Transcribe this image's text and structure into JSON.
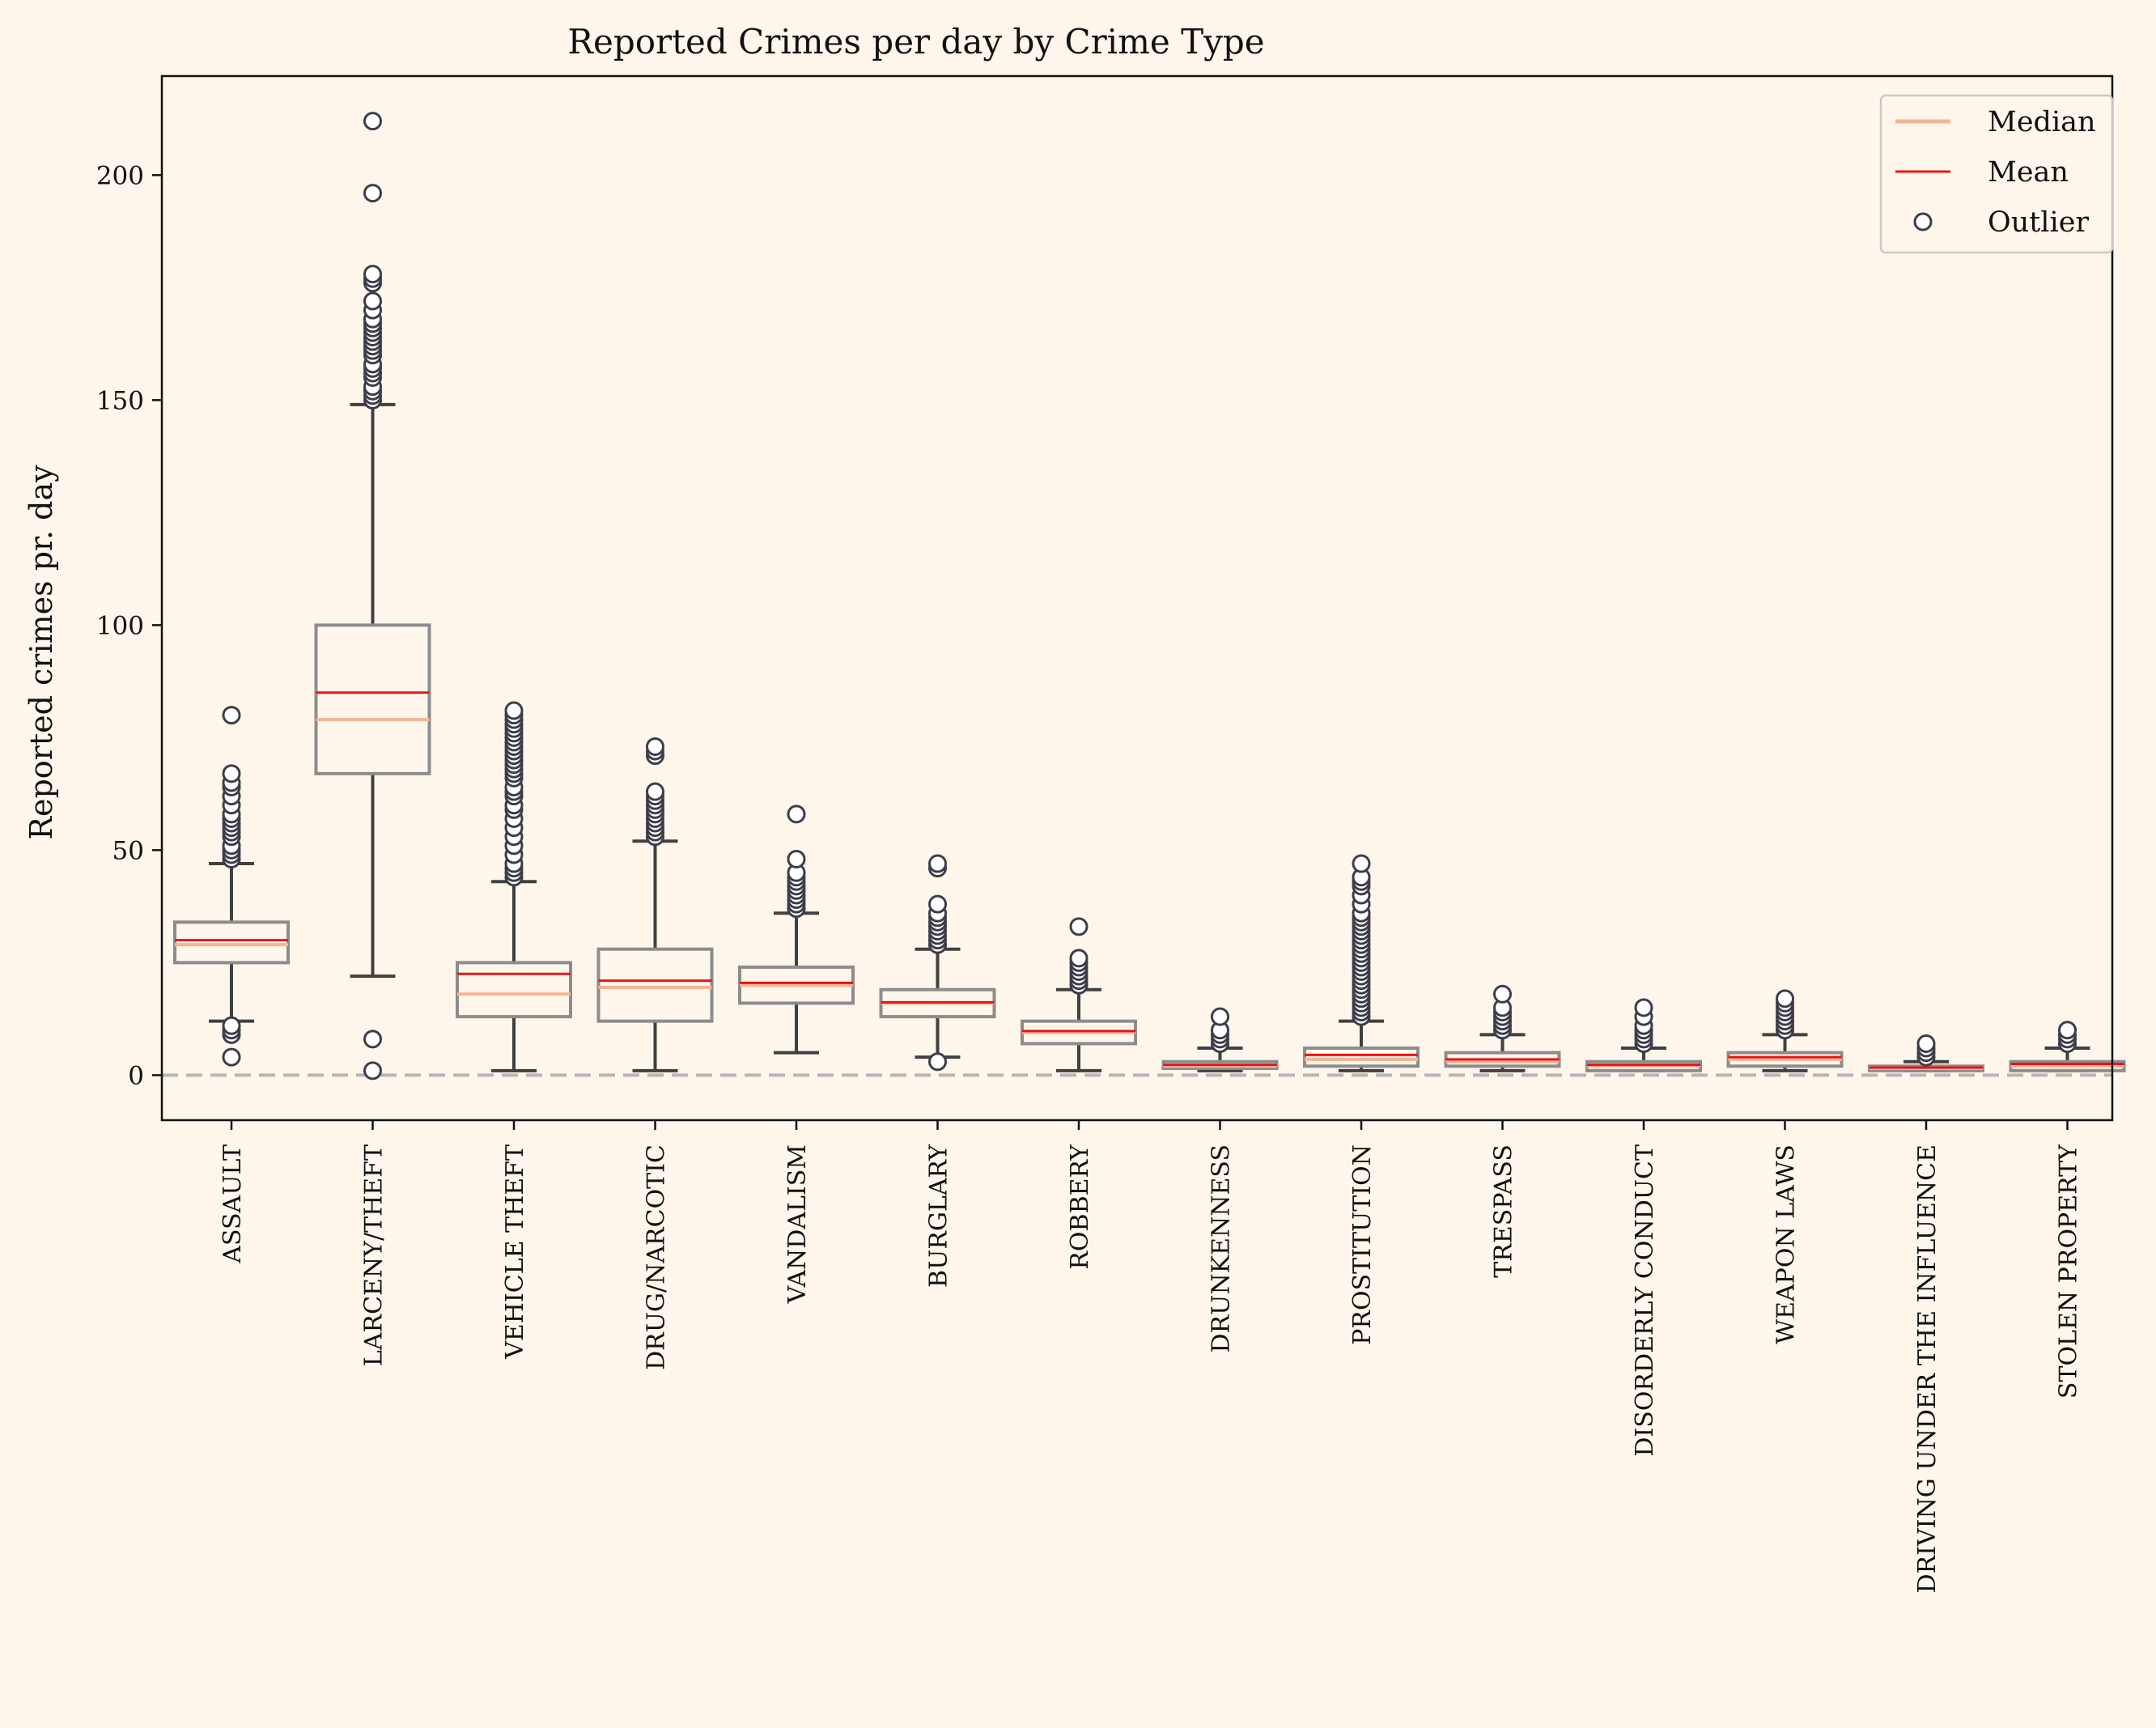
{
  "chart_data": {
    "type": "box",
    "title": "Reported Crimes per day by Crime Type",
    "xlabel": "",
    "ylabel": "Reported crimes pr. day",
    "ylim": [
      -10,
      222
    ],
    "yticks": [
      0,
      50,
      100,
      150,
      200
    ],
    "reference_line": 0,
    "legend": {
      "placement": "top-right",
      "entries": [
        {
          "key": "median",
          "label": "Median"
        },
        {
          "key": "mean",
          "label": "Mean"
        },
        {
          "key": "outlier",
          "label": "Outlier"
        }
      ]
    },
    "colors": {
      "median": "#f7b493",
      "mean": "#e8141a",
      "box_edge": "#8c8c8c",
      "whisker": "#404040",
      "reference": "#b5b5b5",
      "background": "#fff6eb"
    },
    "categories": [
      "ASSAULT",
      "LARCENY/THEFT",
      "VEHICLE THEFT",
      "DRUG/NARCOTIC",
      "VANDALISM",
      "BURGLARY",
      "ROBBERY",
      "DRUNKENNESS",
      "PROSTITUTION",
      "TRESPASS",
      "DISORDERLY CONDUCT",
      "WEAPON LAWS",
      "DRIVING UNDER THE INFLUENCE",
      "STOLEN PROPERTY"
    ],
    "boxes": [
      {
        "q1": 25,
        "median": 29,
        "q3": 34,
        "mean": 30,
        "whisker_low": 12,
        "whisker_high": 47,
        "outliers": [
          4,
          9,
          10,
          11,
          48,
          49,
          50,
          51,
          53,
          54,
          55,
          56,
          57,
          58,
          60,
          62,
          64,
          65,
          67,
          80
        ]
      },
      {
        "q1": 67,
        "median": 79,
        "q3": 100,
        "mean": 85,
        "whisker_low": 22,
        "whisker_high": 149,
        "outliers": [
          1,
          8,
          150,
          151,
          152,
          153,
          155,
          156,
          157,
          158,
          160,
          161,
          162,
          163,
          164,
          165,
          166,
          167,
          168,
          170,
          172,
          176,
          177,
          178,
          196,
          212
        ]
      },
      {
        "q1": 13,
        "median": 18,
        "q3": 25,
        "mean": 22.5,
        "whisker_low": 1,
        "whisker_high": 43,
        "outliers": [
          44,
          45,
          46,
          47,
          49,
          51,
          53,
          55,
          57,
          59,
          60,
          62,
          63,
          64,
          66,
          67,
          68,
          69,
          70,
          71,
          72,
          73,
          74,
          75,
          76,
          77,
          78,
          79,
          80,
          81
        ]
      },
      {
        "q1": 12,
        "median": 19.5,
        "q3": 28,
        "mean": 21,
        "whisker_low": 1,
        "whisker_high": 52,
        "outliers": [
          53,
          54,
          55,
          56,
          57,
          58,
          59,
          60,
          61,
          62,
          63,
          71,
          72,
          73
        ]
      },
      {
        "q1": 16,
        "median": 20,
        "q3": 24,
        "mean": 20.5,
        "whisker_low": 5,
        "whisker_high": 36,
        "outliers": [
          37,
          38,
          39,
          40,
          41,
          42,
          43,
          44,
          45,
          48,
          58
        ]
      },
      {
        "q1": 13,
        "median": 16,
        "q3": 19,
        "mean": 16.2,
        "whisker_low": 4,
        "whisker_high": 28,
        "outliers": [
          3,
          29,
          30,
          31,
          32,
          33,
          34,
          35,
          36,
          38,
          46,
          47
        ]
      },
      {
        "q1": 7,
        "median": 9.5,
        "q3": 12,
        "mean": 9.8,
        "whisker_low": 1,
        "whisker_high": 19,
        "outliers": [
          20,
          21,
          22,
          23,
          24,
          25,
          26,
          33
        ]
      },
      {
        "q1": 1.5,
        "median": 2,
        "q3": 3,
        "mean": 2.3,
        "whisker_low": 1,
        "whisker_high": 6,
        "outliers": [
          7,
          8,
          9,
          10,
          13
        ]
      },
      {
        "q1": 2,
        "median": 3.5,
        "q3": 6,
        "mean": 4.5,
        "whisker_low": 1,
        "whisker_high": 12,
        "outliers": [
          13,
          14,
          15,
          16,
          17,
          18,
          19,
          20,
          21,
          22,
          23,
          24,
          25,
          26,
          27,
          28,
          29,
          30,
          31,
          32,
          33,
          34,
          35,
          36,
          38,
          40,
          42,
          43,
          44,
          47
        ]
      },
      {
        "q1": 2,
        "median": 3,
        "q3": 5,
        "mean": 3.5,
        "whisker_low": 1,
        "whisker_high": 9,
        "outliers": [
          10,
          11,
          12,
          13,
          14,
          15,
          18
        ]
      },
      {
        "q1": 1,
        "median": 2,
        "q3": 3,
        "mean": 2.3,
        "whisker_low": 1,
        "whisker_high": 6,
        "outliers": [
          7,
          8,
          9,
          10,
          11,
          13,
          15
        ]
      },
      {
        "q1": 2,
        "median": 3.5,
        "q3": 5,
        "mean": 4,
        "whisker_low": 1,
        "whisker_high": 9,
        "outliers": [
          10,
          11,
          12,
          13,
          14,
          15,
          16,
          17
        ]
      },
      {
        "q1": 1,
        "median": 1.5,
        "q3": 2,
        "mean": 1.7,
        "whisker_low": 1,
        "whisker_high": 3,
        "outliers": [
          4,
          5,
          6,
          7
        ]
      },
      {
        "q1": 1,
        "median": 2,
        "q3": 3,
        "mean": 2.5,
        "whisker_low": 1,
        "whisker_high": 6,
        "outliers": [
          7,
          8,
          9,
          10
        ]
      }
    ]
  }
}
